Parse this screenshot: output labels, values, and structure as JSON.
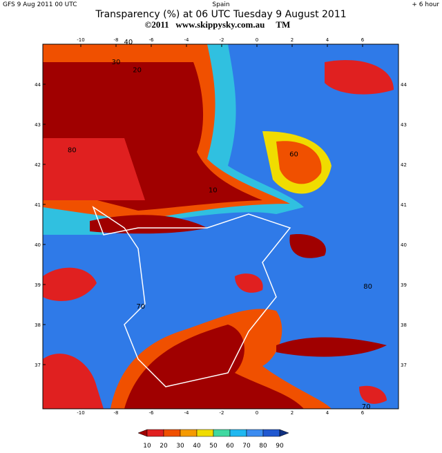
{
  "header": {
    "model": "GFS  9 Aug 2011 00 UTC",
    "region": "Spain",
    "lead": "+ 6 hour",
    "title": "Transparency (%) at 06 UTC Tuesday 9 August 2011",
    "credit": "©2011   www.skippysky.com.au     TM"
  },
  "map": {
    "lon_labels": [
      -10,
      -8,
      -6,
      -4,
      -2,
      0,
      2,
      4,
      6
    ],
    "lat_labels": [
      44,
      43,
      42,
      41,
      40,
      39,
      38,
      37
    ],
    "contour_labels": [
      {
        "text": "40",
        "lon": -7.3,
        "lat": 45.0
      },
      {
        "text": "30",
        "lon": -8,
        "lat": 44.5
      },
      {
        "text": "20",
        "lon": -6.8,
        "lat": 44.3
      },
      {
        "text": "60",
        "lon": 2.1,
        "lat": 42.2
      },
      {
        "text": "80",
        "lon": -10.5,
        "lat": 42.3
      },
      {
        "text": "10",
        "lon": -2.5,
        "lat": 41.3
      },
      {
        "text": "70",
        "lon": -6.6,
        "lat": 38.4
      },
      {
        "text": "80",
        "lon": 6.3,
        "lat": 38.9
      },
      {
        "text": "70",
        "lon": 6.2,
        "lat": 35.9
      }
    ]
  },
  "colorbar": {
    "colors": [
      "#a00000",
      "#e02020",
      "#f05000",
      "#f59a00",
      "#f0dc00",
      "#40d8a0",
      "#20b8f0",
      "#3c8cf0",
      "#2058d0",
      "#103080"
    ],
    "labels": [
      10,
      20,
      30,
      40,
      50,
      60,
      70,
      80,
      90
    ]
  }
}
